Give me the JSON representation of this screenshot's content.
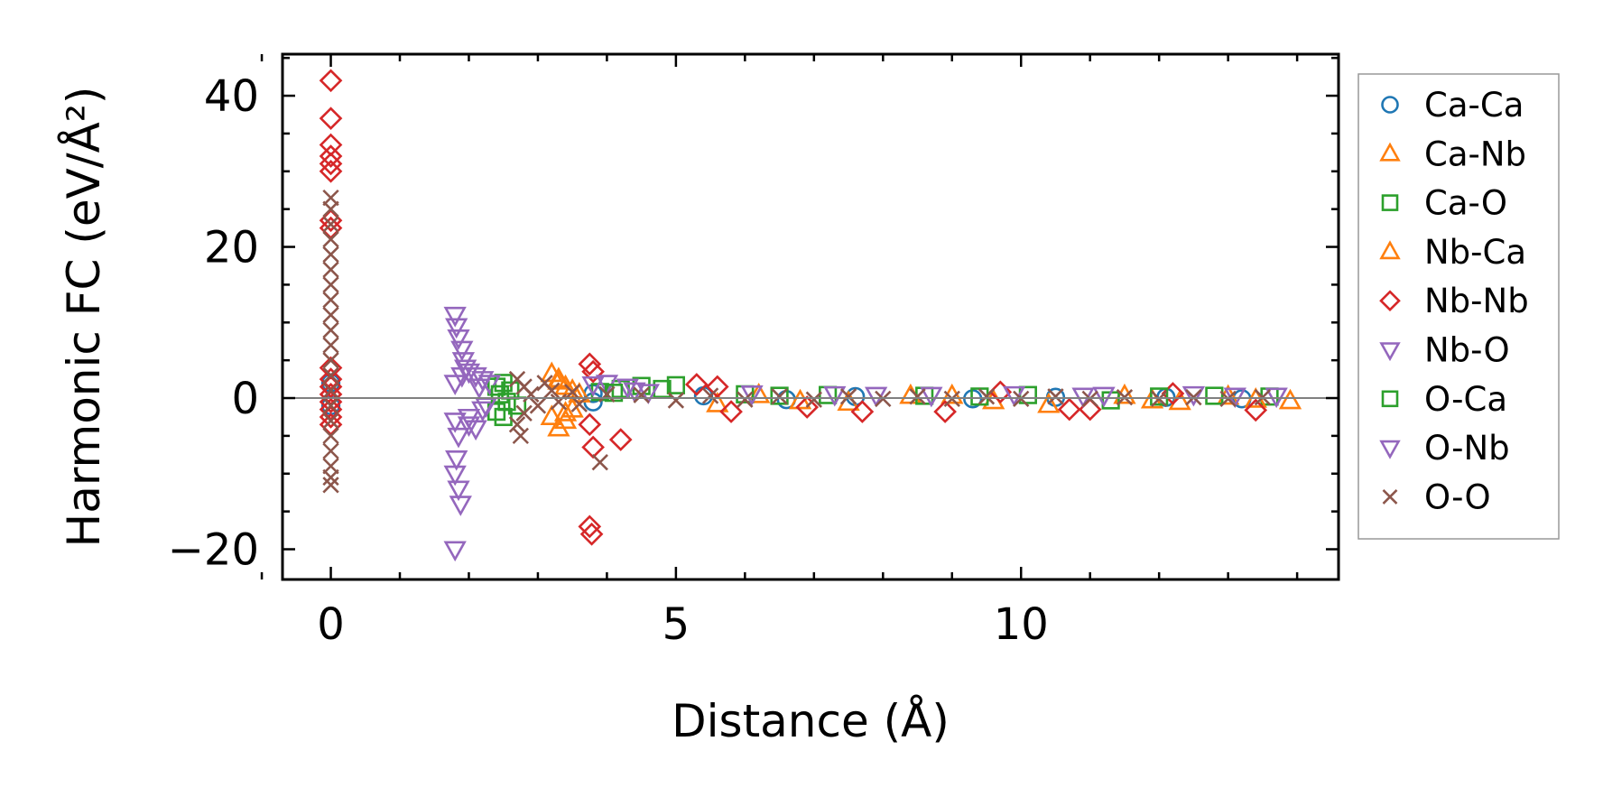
{
  "chart_data": {
    "type": "scatter",
    "title": "",
    "xlabel": "Distance (Å)",
    "ylabel": "Harmonic FC (eV/Å²)",
    "xlim": [
      -0.7,
      14.6
    ],
    "ylim": [
      -24,
      45.5
    ],
    "x_ticks": [
      0,
      5,
      10
    ],
    "y_ticks": [
      -20,
      0,
      20,
      40
    ],
    "x_tick_labels": [
      "0",
      "5",
      "10"
    ],
    "y_tick_labels": [
      "−20",
      "0",
      "20",
      "40"
    ],
    "zero_line": true,
    "grid": false,
    "legend_position": "right-outside",
    "series": [
      {
        "name": "Ca-Ca",
        "marker": "circle",
        "color": "#1f77b4",
        "points": [
          [
            0.0,
            2.0
          ],
          [
            0.0,
            -1.0
          ],
          [
            3.8,
            0.6
          ],
          [
            3.8,
            -0.5
          ],
          [
            5.4,
            0.3
          ],
          [
            6.6,
            -0.2
          ],
          [
            7.6,
            0.2
          ],
          [
            9.3,
            -0.1
          ],
          [
            10.5,
            0.1
          ],
          [
            12.1,
            0.1
          ],
          [
            13.2,
            -0.1
          ]
        ]
      },
      {
        "name": "Ca-Nb",
        "marker": "triangle-up",
        "color": "#ff7f0e",
        "points": [
          [
            3.2,
            3.2
          ],
          [
            3.3,
            2.5
          ],
          [
            3.4,
            1.5
          ],
          [
            3.2,
            -2.5
          ],
          [
            3.3,
            -4.0
          ],
          [
            3.4,
            -3.0
          ],
          [
            3.5,
            1.0
          ],
          [
            3.5,
            -1.5
          ],
          [
            5.6,
            -0.8
          ],
          [
            6.2,
            0.4
          ],
          [
            7.5,
            -0.6
          ],
          [
            8.4,
            0.3
          ],
          [
            9.6,
            -0.4
          ],
          [
            10.4,
            -0.9
          ],
          [
            11.5,
            0.3
          ],
          [
            12.3,
            -0.5
          ],
          [
            13.0,
            0.2
          ],
          [
            13.9,
            -0.4
          ]
        ]
      },
      {
        "name": "Ca-O",
        "marker": "square",
        "color": "#2ca02c",
        "points": [
          [
            2.4,
            1.5
          ],
          [
            2.4,
            -1.8
          ],
          [
            2.5,
            2.0
          ],
          [
            2.5,
            -2.5
          ],
          [
            2.6,
            1.0
          ],
          [
            2.7,
            -1.0
          ],
          [
            3.9,
            0.8
          ],
          [
            4.2,
            1.2
          ],
          [
            4.5,
            1.6
          ],
          [
            4.8,
            1.2
          ],
          [
            5.0,
            1.7
          ],
          [
            6.0,
            0.5
          ],
          [
            7.2,
            0.4
          ],
          [
            8.6,
            0.3
          ],
          [
            10.1,
            0.4
          ],
          [
            11.3,
            -0.3
          ],
          [
            12.8,
            0.3
          ],
          [
            13.6,
            0.2
          ]
        ]
      },
      {
        "name": "Nb-Ca",
        "marker": "triangle-up",
        "color": "#ff7f0e",
        "points": [
          [
            3.3,
            2.2
          ],
          [
            3.4,
            -2.0
          ],
          [
            3.6,
            0.5
          ],
          [
            6.8,
            -0.4
          ],
          [
            9.0,
            0.3
          ],
          [
            11.9,
            -0.3
          ],
          [
            13.4,
            -0.2
          ]
        ]
      },
      {
        "name": "Nb-Nb",
        "marker": "diamond",
        "color": "#d62728",
        "points": [
          [
            0.0,
            42.0
          ],
          [
            0.0,
            37.0
          ],
          [
            0.0,
            33.5
          ],
          [
            0.0,
            32.0
          ],
          [
            0.0,
            31.0
          ],
          [
            0.0,
            30.0
          ],
          [
            0.0,
            23.5
          ],
          [
            0.0,
            22.5
          ],
          [
            0.0,
            4.0
          ],
          [
            0.0,
            2.5
          ],
          [
            0.0,
            1.5
          ],
          [
            0.0,
            0.5
          ],
          [
            0.0,
            -0.5
          ],
          [
            0.0,
            -1.5
          ],
          [
            0.0,
            -2.5
          ],
          [
            0.0,
            -3.5
          ],
          [
            3.75,
            4.5
          ],
          [
            3.8,
            3.5
          ],
          [
            3.75,
            -3.5
          ],
          [
            3.8,
            -6.5
          ],
          [
            4.2,
            -5.5
          ],
          [
            3.75,
            -17.0
          ],
          [
            3.78,
            -18.0
          ],
          [
            5.3,
            1.8
          ],
          [
            5.6,
            1.5
          ],
          [
            5.8,
            -1.8
          ],
          [
            6.9,
            -1.2
          ],
          [
            7.7,
            -1.8
          ],
          [
            8.9,
            -1.8
          ],
          [
            9.7,
            0.8
          ],
          [
            10.7,
            -1.5
          ],
          [
            11.0,
            -1.5
          ],
          [
            12.2,
            0.6
          ],
          [
            13.4,
            -1.6
          ]
        ]
      },
      {
        "name": "Nb-O",
        "marker": "triangle-down",
        "color": "#9467bd",
        "points": [
          [
            1.8,
            11.0
          ],
          [
            1.82,
            9.5
          ],
          [
            1.85,
            8.0
          ],
          [
            1.9,
            6.5
          ],
          [
            1.92,
            5.0
          ],
          [
            1.95,
            4.0
          ],
          [
            2.0,
            3.5
          ],
          [
            2.1,
            3.0
          ],
          [
            2.2,
            2.5
          ],
          [
            2.3,
            2.0
          ],
          [
            1.8,
            2.0
          ],
          [
            1.8,
            -3.0
          ],
          [
            1.85,
            -5.0
          ],
          [
            1.82,
            -8.0
          ],
          [
            1.8,
            -10.0
          ],
          [
            1.85,
            -12.0
          ],
          [
            1.88,
            -14.0
          ],
          [
            1.8,
            -20.0
          ],
          [
            2.0,
            -2.5
          ],
          [
            2.1,
            -4.0
          ],
          [
            2.2,
            -1.5
          ],
          [
            3.8,
            1.8
          ],
          [
            4.0,
            2.0
          ],
          [
            4.3,
            1.5
          ],
          [
            4.6,
            0.8
          ],
          [
            6.1,
            0.6
          ],
          [
            7.3,
            0.5
          ],
          [
            8.7,
            0.4
          ],
          [
            9.9,
            0.5
          ],
          [
            11.2,
            0.4
          ],
          [
            12.5,
            0.5
          ],
          [
            13.7,
            0.3
          ]
        ]
      },
      {
        "name": "O-Ca",
        "marker": "square",
        "color": "#2ca02c",
        "points": [
          [
            2.45,
            0.5
          ],
          [
            2.55,
            -0.5
          ],
          [
            4.1,
            0.7
          ],
          [
            6.5,
            0.3
          ],
          [
            9.4,
            0.2
          ],
          [
            12.0,
            0.2
          ]
        ]
      },
      {
        "name": "O-Nb",
        "marker": "triangle-down",
        "color": "#9467bd",
        "points": [
          [
            1.9,
            3.0
          ],
          [
            2.0,
            -3.5
          ],
          [
            2.15,
            1.5
          ],
          [
            2.25,
            -1.0
          ],
          [
            4.4,
            1.0
          ],
          [
            7.9,
            0.4
          ],
          [
            10.9,
            0.3
          ],
          [
            13.1,
            0.3
          ]
        ]
      },
      {
        "name": "O-O",
        "marker": "x",
        "color": "#8c564b",
        "points": [
          [
            0.0,
            26.5
          ],
          [
            0.0,
            25.0
          ],
          [
            0.0,
            23.0
          ],
          [
            0.0,
            21.0
          ],
          [
            0.0,
            19.0
          ],
          [
            0.0,
            17.0
          ],
          [
            0.0,
            15.0
          ],
          [
            0.0,
            13.0
          ],
          [
            0.0,
            11.0
          ],
          [
            0.0,
            9.0
          ],
          [
            0.0,
            7.0
          ],
          [
            0.0,
            5.0
          ],
          [
            0.0,
            3.0
          ],
          [
            0.0,
            1.0
          ],
          [
            0.0,
            -1.0
          ],
          [
            0.0,
            -3.0
          ],
          [
            0.0,
            -5.0
          ],
          [
            0.0,
            -7.0
          ],
          [
            0.0,
            -9.0
          ],
          [
            0.0,
            -10.5
          ],
          [
            0.0,
            -11.5
          ],
          [
            2.7,
            2.5
          ],
          [
            2.8,
            1.5
          ],
          [
            2.9,
            0.5
          ],
          [
            3.0,
            -1.0
          ],
          [
            2.8,
            -2.0
          ],
          [
            2.7,
            -3.5
          ],
          [
            2.75,
            -5.0
          ],
          [
            3.1,
            2.0
          ],
          [
            3.2,
            1.0
          ],
          [
            3.3,
            -0.5
          ],
          [
            3.5,
            0.8
          ],
          [
            3.6,
            -0.8
          ],
          [
            3.9,
            -8.5
          ],
          [
            4.0,
            0.5
          ],
          [
            4.5,
            0.4
          ],
          [
            5.0,
            -0.3
          ],
          [
            5.5,
            0.3
          ],
          [
            6.0,
            -0.2
          ],
          [
            6.5,
            0.2
          ],
          [
            7.0,
            -0.2
          ],
          [
            7.5,
            0.2
          ],
          [
            8.0,
            -0.1
          ],
          [
            8.5,
            0.2
          ],
          [
            9.0,
            -0.1
          ],
          [
            9.5,
            0.2
          ],
          [
            10.0,
            -0.1
          ],
          [
            10.5,
            0.2
          ],
          [
            11.0,
            -0.1
          ],
          [
            11.5,
            0.1
          ],
          [
            12.0,
            -0.1
          ],
          [
            12.5,
            0.1
          ],
          [
            13.0,
            -0.1
          ],
          [
            13.5,
            0.1
          ]
        ]
      }
    ]
  }
}
